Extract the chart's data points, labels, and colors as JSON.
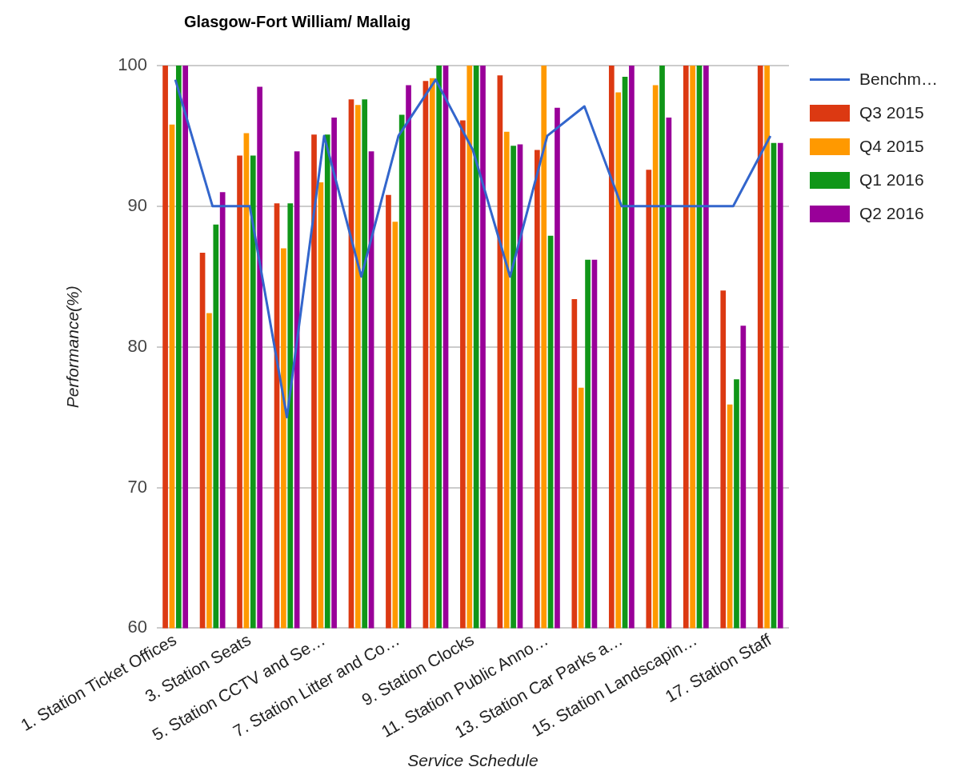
{
  "chart_data": {
    "type": "bar",
    "title": "Glasgow-Fort William/ Mallaig",
    "xlabel": "Service Schedule",
    "ylabel": "Performance(%)",
    "categories": [
      "1. Station Ticket Offices",
      null,
      "3. Station Seats",
      null,
      "5. Station CCTV and Se…",
      null,
      "7. Station Litter and Co…",
      null,
      "9. Station Clocks",
      null,
      "11. Station Public Anno…",
      null,
      "13. Station Car Parks a…",
      null,
      "15. Station Landscapin…",
      null,
      "17. Station Staff"
    ],
    "series": [
      {
        "name": "Benchm…",
        "type": "line",
        "color": "#3366cc",
        "values": [
          99,
          90,
          90,
          75,
          95,
          85,
          95,
          99,
          94,
          85,
          95,
          97.1,
          90,
          90,
          90,
          90,
          95
        ]
      },
      {
        "name": "Q3 2015",
        "color": "#dc3912",
        "values": [
          100,
          86.7,
          93.6,
          90.2,
          95.1,
          97.6,
          90.8,
          98.9,
          96.1,
          99.3,
          94,
          83.4,
          100,
          92.6,
          100,
          84,
          100
        ]
      },
      {
        "name": "Q4 2015",
        "color": "#ff9900",
        "values": [
          95.8,
          82.4,
          95.2,
          87,
          91.7,
          97.2,
          88.9,
          99.1,
          100,
          95.3,
          100,
          77.1,
          98.1,
          98.6,
          100,
          75.9,
          100
        ]
      },
      {
        "name": "Q1 2016",
        "color": "#109618",
        "values": [
          100,
          88.7,
          93.6,
          90.2,
          95.1,
          97.6,
          96.5,
          100,
          100,
          94.3,
          87.9,
          86.2,
          99.2,
          100,
          100,
          77.7,
          94.5
        ]
      },
      {
        "name": "Q2 2016",
        "color": "#990099",
        "values": [
          100,
          91,
          98.5,
          93.9,
          96.3,
          93.9,
          98.6,
          100,
          100,
          94.4,
          97,
          86.2,
          100,
          96.3,
          100,
          81.5,
          94.5
        ]
      }
    ],
    "ylim": [
      60,
      100
    ],
    "yticks": [
      60,
      70,
      80,
      90,
      100
    ],
    "grid": "y",
    "legend": "right",
    "marker": "none",
    "line_style": "solid"
  }
}
